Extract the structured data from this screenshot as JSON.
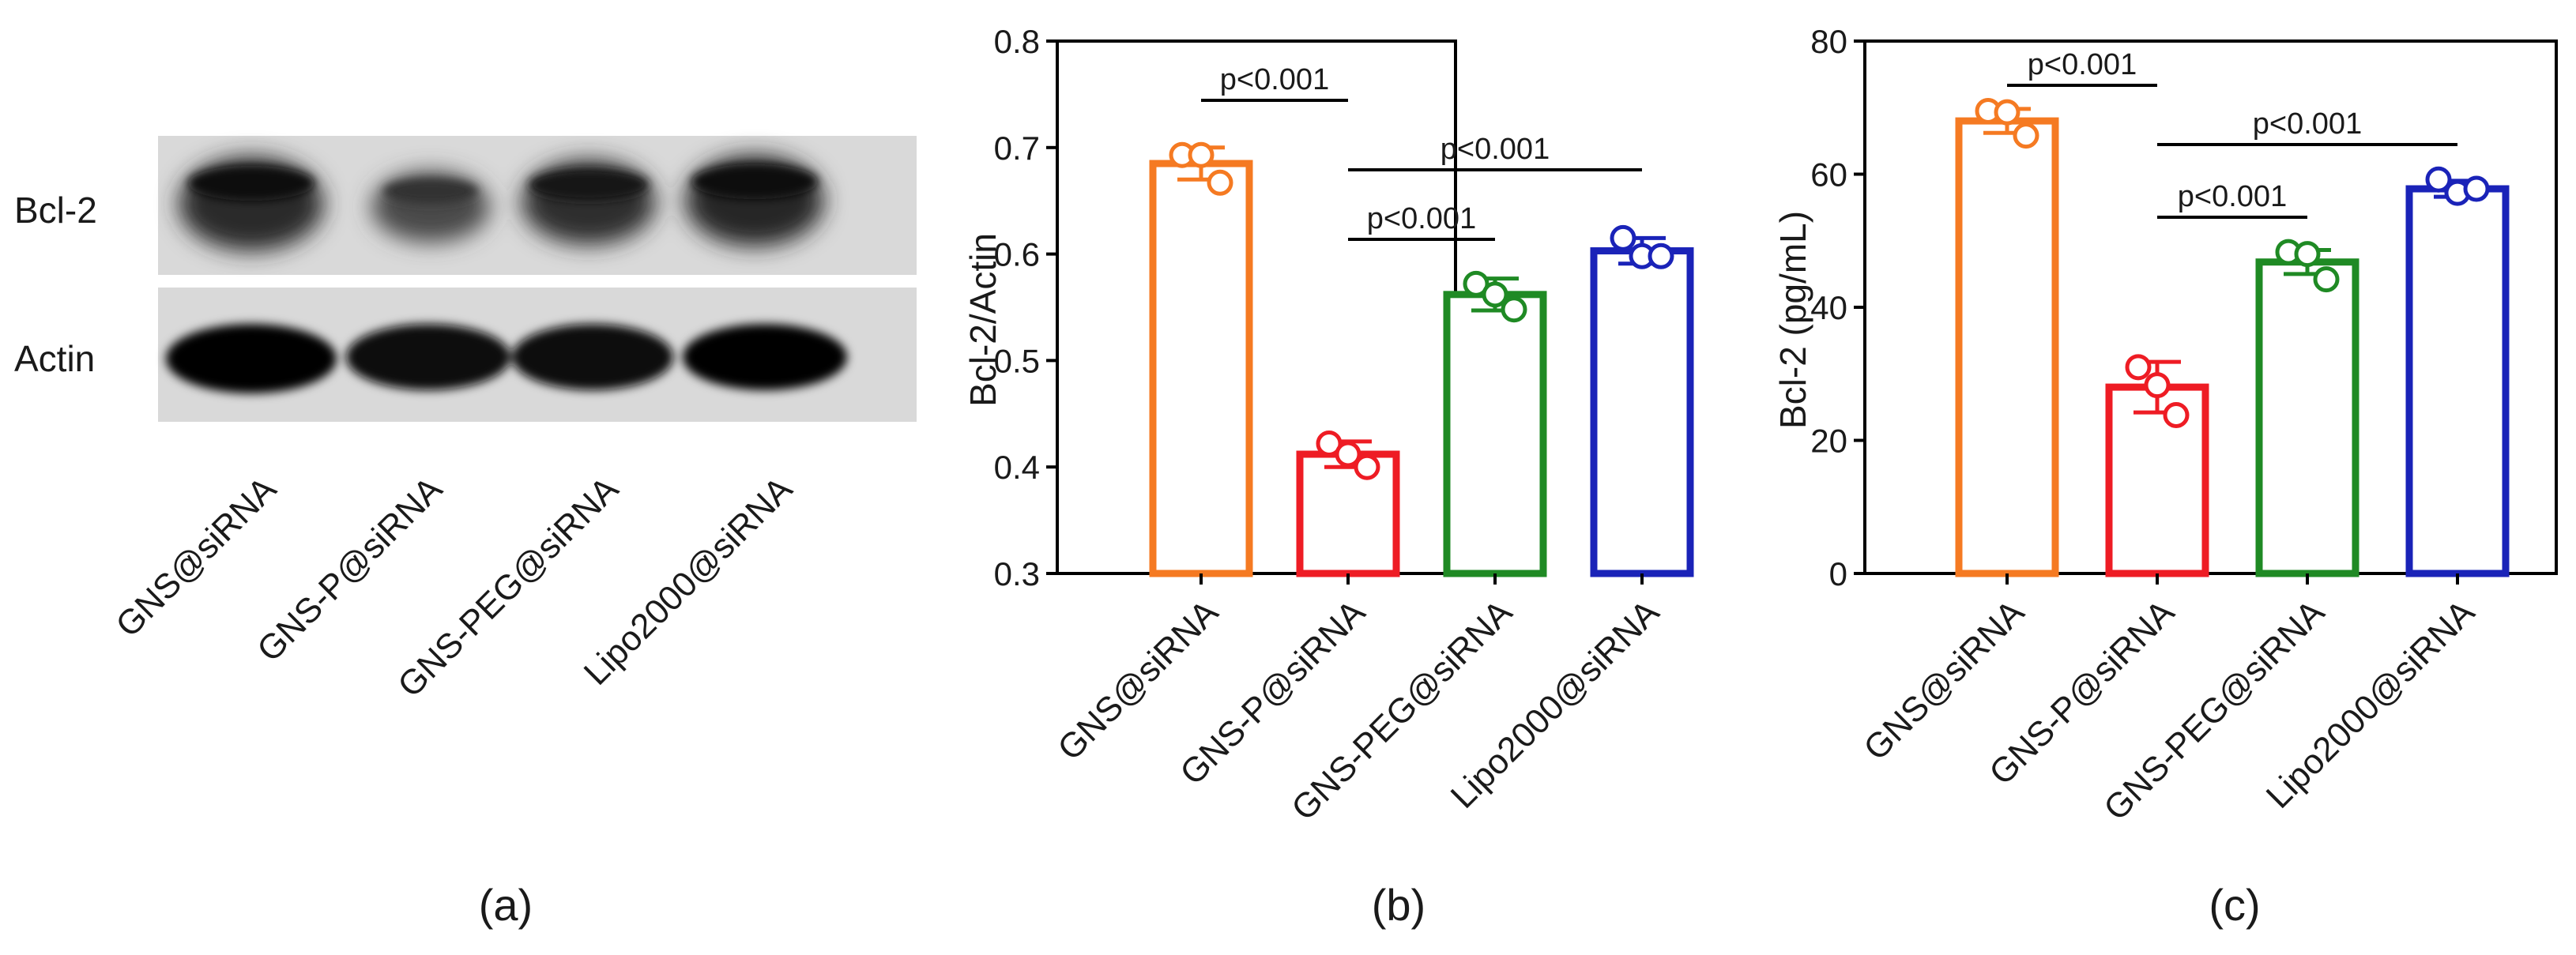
{
  "panel_a": {
    "lane_labels": [
      "GNS@siRNA",
      "GNS-P@siRNA",
      "GNS-PEG@siRNA",
      "Lipo2000@siRNA"
    ],
    "row_labels": [
      "Bcl-2",
      "Actin"
    ],
    "caption": "(a)"
  },
  "panel_b": {
    "caption": "(b)",
    "significance": [
      {
        "from": 0,
        "to": 1,
        "label": "p<0.001"
      },
      {
        "from": 1,
        "to": 3,
        "label": "p<0.001"
      },
      {
        "from": 1,
        "to": 2,
        "label": "p<0.001"
      }
    ]
  },
  "panel_c": {
    "caption": "(c)",
    "significance": [
      {
        "from": 0,
        "to": 1,
        "label": "p<0.001"
      },
      {
        "from": 1,
        "to": 3,
        "label": "p<0.001"
      },
      {
        "from": 1,
        "to": 2,
        "label": "p<0.001"
      }
    ]
  },
  "colors": {
    "GNS@siRNA": "#f57a22",
    "GNS-P@siRNA": "#ee1c24",
    "GNS-PEG@siRNA": "#1f8a24",
    "Lipo2000@siRNA": "#1a23b8"
  },
  "chart_data": [
    {
      "type": "bar",
      "categories": [
        "GNS@siRNA",
        "GNS-P@siRNA",
        "GNS-PEG@siRNA",
        "Lipo2000@siRNA"
      ],
      "values": [
        0.685,
        0.412,
        0.562,
        0.603
      ],
      "errors": [
        0.015,
        0.012,
        0.015,
        0.012
      ],
      "points": [
        [
          0.693,
          0.693,
          0.667
        ],
        [
          0.422,
          0.412,
          0.4
        ],
        [
          0.572,
          0.562,
          0.548
        ],
        [
          0.615,
          0.598,
          0.598
        ]
      ],
      "title": "",
      "xlabel": "",
      "ylabel": "Bcl-2/Actin",
      "ylim": [
        0.3,
        0.8
      ],
      "yticks": [
        "0.3",
        "0.4",
        "0.5",
        "0.6",
        "0.7",
        "0.8"
      ],
      "grid": false
    },
    {
      "type": "bar",
      "categories": [
        "GNS@siRNA",
        "GNS-P@siRNA",
        "GNS-PEG@siRNA",
        "Lipo2000@siRNA"
      ],
      "values": [
        68.0,
        28.0,
        46.8,
        57.8
      ],
      "errors": [
        1.8,
        3.8,
        1.8,
        1.2
      ],
      "points": [
        [
          69.5,
          69.3,
          65.8
        ],
        [
          31.0,
          28.3,
          23.8
        ],
        [
          48.3,
          48.0,
          44.2
        ],
        [
          59.2,
          57.2,
          57.8
        ]
      ],
      "title": "",
      "xlabel": "",
      "ylabel": "Bcl-2 (pg/mL)",
      "ylim": [
        0,
        80
      ],
      "yticks": [
        "0",
        "20",
        "40",
        "60",
        "80"
      ],
      "grid": false
    }
  ]
}
